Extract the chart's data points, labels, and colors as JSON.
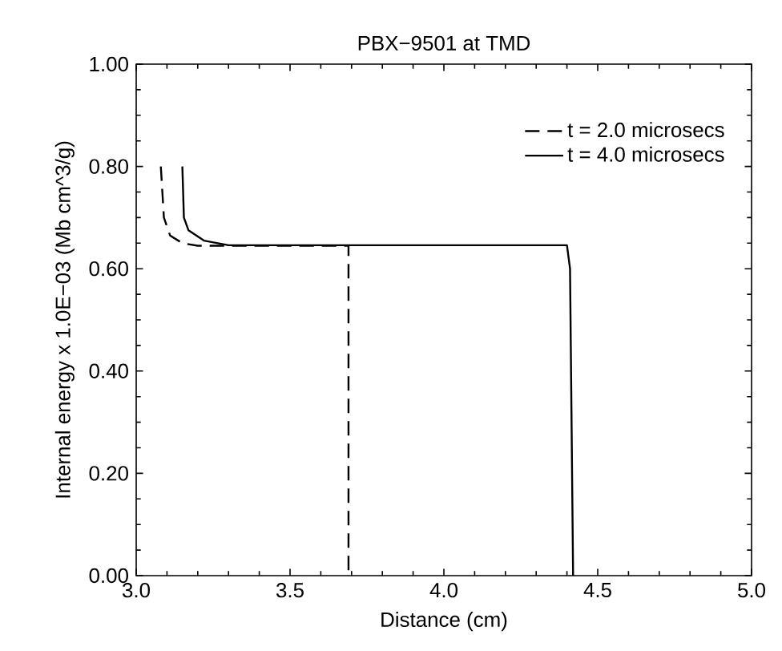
{
  "chart_data": {
    "type": "line",
    "title": "PBX−9501 at TMD",
    "xlabel": "Distance (cm)",
    "ylabel": "Internal energy x 1.0E−03 (Mb cm^3/g)",
    "xlim": [
      3.0,
      5.0
    ],
    "xticks": [
      {
        "value": 3.0,
        "label": "3.0"
      },
      {
        "value": 3.5,
        "label": "3.5"
      },
      {
        "value": 4.0,
        "label": "4.0"
      },
      {
        "value": 4.5,
        "label": "4.5"
      },
      {
        "value": 5.0,
        "label": "5.0"
      }
    ],
    "ylim": [
      0,
      1
    ],
    "yticks": [
      {
        "value": 0,
        "label": "0.00"
      },
      {
        "value": 0.2,
        "label": "0.20"
      },
      {
        "value": 0.4,
        "label": "0.40"
      },
      {
        "value": 0.6,
        "label": "0.60"
      },
      {
        "value": 0.8,
        "label": "0.80"
      },
      {
        "value": 1.0,
        "label": "1.00"
      }
    ],
    "legend": "top right",
    "grid": false,
    "marker": "none",
    "series": [
      {
        "name": "t = 2.0 microsecs",
        "color": "#000000",
        "line_style": "dashed",
        "x": [
          3.08,
          3.09,
          3.11,
          3.15,
          3.2,
          3.69,
          3.69
        ],
        "values": [
          0.8,
          0.7,
          0.665,
          0.65,
          0.645,
          0.645,
          0
        ]
      },
      {
        "name": "t = 4.0 microsecs",
        "color": "#000000",
        "line_style": "solid",
        "x": [
          3.15,
          3.155,
          3.17,
          3.22,
          3.3,
          4.4,
          4.41,
          4.42
        ],
        "values": [
          0.8,
          0.7,
          0.675,
          0.655,
          0.646,
          0.646,
          0.6,
          0
        ]
      }
    ]
  }
}
